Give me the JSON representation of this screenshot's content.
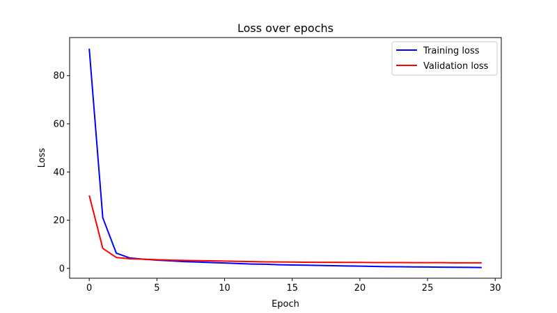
{
  "chart_data": {
    "type": "line",
    "title": "Loss over epochs",
    "xlabel": "Epoch",
    "ylabel": "Loss",
    "xlim": [
      -1.45,
      30.45
    ],
    "ylim": [
      -4.1,
      95.8
    ],
    "xticks": [
      0,
      5,
      10,
      15,
      20,
      25,
      30
    ],
    "yticks": [
      0,
      20,
      40,
      60,
      80
    ],
    "grid": false,
    "legend": "top-right",
    "x": [
      0,
      1,
      2,
      3,
      4,
      5,
      6,
      7,
      8,
      9,
      10,
      11,
      12,
      13,
      14,
      15,
      16,
      17,
      18,
      19,
      20,
      21,
      22,
      23,
      24,
      25,
      26,
      27,
      28,
      29
    ],
    "series": [
      {
        "name": "Training loss",
        "color": "#0000ff",
        "values": [
          91.2,
          21.0,
          6.3,
          4.3,
          3.8,
          3.4,
          3.1,
          2.8,
          2.6,
          2.4,
          2.2,
          2.0,
          1.8,
          1.7,
          1.5,
          1.4,
          1.3,
          1.2,
          1.1,
          1.0,
          0.9,
          0.8,
          0.7,
          0.65,
          0.6,
          0.55,
          0.5,
          0.45,
          0.4,
          0.35
        ]
      },
      {
        "name": "Validation loss",
        "color": "#ff0000",
        "values": [
          30.3,
          8.3,
          4.5,
          4.0,
          3.8,
          3.6,
          3.4,
          3.3,
          3.2,
          3.1,
          3.0,
          2.9,
          2.8,
          2.7,
          2.65,
          2.6,
          2.55,
          2.5,
          2.5,
          2.45,
          2.45,
          2.4,
          2.4,
          2.4,
          2.35,
          2.35,
          2.35,
          2.3,
          2.3,
          2.3
        ]
      }
    ]
  }
}
